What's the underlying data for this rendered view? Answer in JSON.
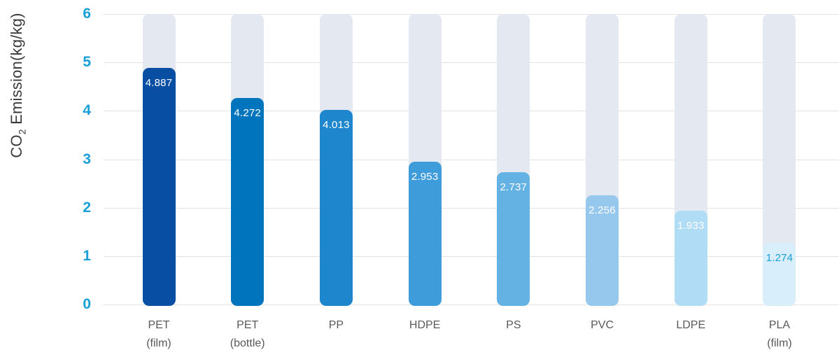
{
  "chart_data": {
    "type": "bar",
    "title": "",
    "ylabel": "CO₂ Emission(kg/kg)",
    "ylabel_parts": {
      "prefix": "CO",
      "sub": "2",
      "suffix": " Emission(kg/kg)"
    },
    "xlabel": "",
    "categories": [
      "PET (film)",
      "PET (bottle)",
      "PP",
      "HDPE",
      "PS",
      "PVC",
      "LDPE",
      "PLA (film)"
    ],
    "category_labels": [
      "PET\n(film)",
      "PET\n(bottle)",
      "PP",
      "HDPE",
      "PS",
      "PVC",
      "LDPE",
      "PLA\n(film)"
    ],
    "values": [
      4.887,
      4.272,
      4.013,
      2.953,
      2.737,
      2.256,
      1.933,
      1.274
    ],
    "value_labels": [
      "4.887",
      "4.272",
      "4.013",
      "2.953",
      "2.737",
      "2.256",
      "1.933",
      "1.274"
    ],
    "bar_colors": [
      "#084fa4",
      "#0074bd",
      "#1e86cd",
      "#3f9cda",
      "#64b2e4",
      "#95c8ec",
      "#b0dcf5",
      "#d9eefb"
    ],
    "value_label_colors": [
      "#ffffff",
      "#ffffff",
      "#ffffff",
      "#ffffff",
      "#ffffff",
      "#ffffff",
      "#ffffff",
      "#1a9fd9"
    ],
    "ylim": [
      0,
      6
    ],
    "yticks": [
      0,
      1,
      2,
      3,
      4,
      5,
      6
    ],
    "grid": true,
    "legend": "none",
    "colors": {
      "track": "#e4e8f1",
      "gridline": "#e3e3e6",
      "ytick_text": "#1a9fd9",
      "xtick_text": "#595959",
      "ylabel_text": "#3a3a3a",
      "background": "#ffffff"
    }
  }
}
